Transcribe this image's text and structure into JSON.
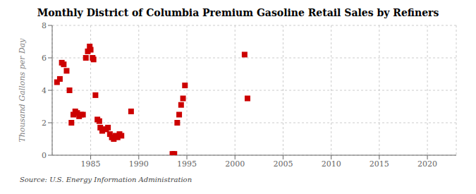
{
  "chart_data": {
    "type": "scatter",
    "title": "Monthly District of Columbia Premium Gasoline Retail Sales by Refiners",
    "ylabel": "Thousand Gallons per Day",
    "annotations": [
      "Source: U.S. Energy Information Administration"
    ],
    "x": [
      1981.5,
      1981.8,
      1982.0,
      1982.2,
      1982.5,
      1982.8,
      1983.0,
      1983.2,
      1983.4,
      1983.6,
      1983.8,
      1984.0,
      1984.2,
      1984.5,
      1984.7,
      1984.9,
      1985.0,
      1985.2,
      1985.3,
      1985.5,
      1985.7,
      1985.9,
      1986.0,
      1986.2,
      1986.4,
      1986.6,
      1986.8,
      1987.0,
      1987.2,
      1987.4,
      1987.6,
      1987.8,
      1988.0,
      1988.2,
      1989.2,
      1993.5,
      1993.7,
      1994.0,
      1994.2,
      1994.4,
      1994.6,
      1994.8,
      2001.0,
      2001.3
    ],
    "values": [
      4.5,
      4.7,
      5.7,
      5.6,
      5.2,
      4.0,
      2.0,
      2.5,
      2.7,
      2.6,
      2.4,
      2.5,
      2.5,
      6.0,
      6.4,
      6.7,
      6.5,
      6.0,
      5.9,
      3.7,
      2.2,
      2.1,
      1.7,
      1.5,
      1.6,
      1.6,
      1.7,
      1.3,
      1.1,
      1.0,
      1.2,
      1.1,
      1.3,
      1.2,
      2.7,
      0.08,
      0.08,
      2.0,
      2.5,
      3.1,
      3.5,
      4.3,
      6.2,
      3.5
    ],
    "color": "#cc0000",
    "marker": "square",
    "xlim": [
      1981.0,
      2023.0
    ],
    "xticks": [
      1985,
      1990,
      1995,
      2000,
      2005,
      2010,
      2015,
      2020
    ],
    "ylim": [
      0,
      8
    ],
    "yticks": [
      0,
      2,
      4,
      6,
      8
    ],
    "grid": true
  }
}
